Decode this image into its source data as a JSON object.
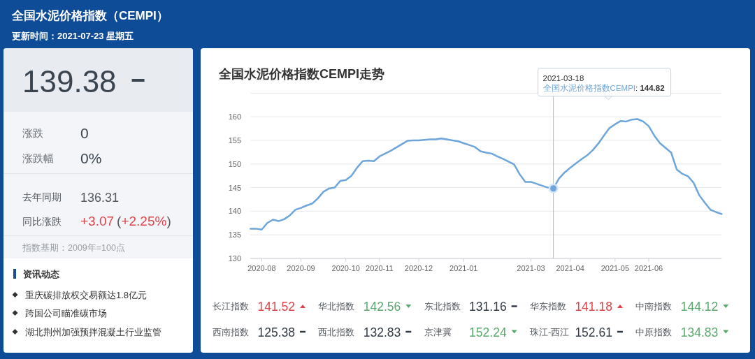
{
  "chart_data": [
    {
      "type": "other",
      "title": "全国水泥价格指数（CEMPI）",
      "subtitle": "更新时间：2021-07-23 星期五",
      "annotations": [
        "139.38",
        "涨跌",
        "0",
        "涨跌幅",
        "0%",
        "去年同期",
        "136.31",
        "同比涨跌",
        "+3.07",
        "(+2.25%)",
        "指数基期：2009年=100点",
        "资讯动态",
        "重庆碳排放权交易额达1.8亿元",
        "跨国公司瞄准碳市场",
        "湖北荆州加强预拌混凝土行业监管"
      ]
    },
    {
      "type": "line",
      "title": "全国水泥价格指数CEMPI走势",
      "categories": [
        null,
        null,
        "2020-08",
        null,
        null,
        null,
        null,
        null,
        null,
        "2020-09",
        null,
        null,
        null,
        null,
        null,
        null,
        null,
        "2020-10",
        null,
        null,
        null,
        null,
        null,
        "2020-11",
        null,
        null,
        null,
        null,
        null,
        null,
        "2020-12",
        null,
        null,
        null,
        null,
        null,
        null,
        null,
        "2021-01",
        null,
        null,
        null,
        null,
        null,
        null,
        null,
        null,
        null,
        null,
        null,
        "2021-03",
        null,
        null,
        null,
        null,
        null,
        null,
        "2021-04",
        null,
        null,
        null,
        null,
        null,
        null,
        null,
        "2021-05",
        null,
        null,
        null,
        null,
        null,
        "2021-06",
        null,
        null,
        null,
        null,
        null,
        null,
        null,
        null,
        null,
        null,
        null,
        null,
        null
      ],
      "series": [
        {
          "type": "line",
          "color": "#6ea6dc",
          "values": [
            136.3,
            136.3,
            136.1,
            137.5,
            138.2,
            137.9,
            138.3,
            139.1,
            140.3,
            140.7,
            141.2,
            141.6,
            142.7,
            144.1,
            144.8,
            145.0,
            146.4,
            146.6,
            147.5,
            149.2,
            150.6,
            150.7,
            150.6,
            151.6,
            152.2,
            152.8,
            153.5,
            154.2,
            154.9,
            155.0,
            155.0,
            155.1,
            155.2,
            155.2,
            155.4,
            155.2,
            155.0,
            154.8,
            154.4,
            154.0,
            153.6,
            152.7,
            152.4,
            152.2,
            151.6,
            151.1,
            150.5,
            149.9,
            147.8,
            146.2,
            146.2,
            145.8,
            145.4,
            145.0,
            144.82,
            146.9,
            148.2,
            149.2,
            150.1,
            151.0,
            151.8,
            152.9,
            154.3,
            156.0,
            157.6,
            158.4,
            159.1,
            159.0,
            159.4,
            159.5,
            159.0,
            158.0,
            156.0,
            154.4,
            153.4,
            152.4,
            148.8,
            147.9,
            147.4,
            146.0,
            143.4,
            141.8,
            140.3,
            139.8,
            139.4
          ]
        },
        {
          "type": "scatter",
          "color": "#6ea6dc",
          "values": [
            null,
            null,
            null,
            null,
            null,
            null,
            null,
            null,
            null,
            null,
            null,
            null,
            null,
            null,
            null,
            null,
            null,
            null,
            null,
            null,
            null,
            null,
            null,
            null,
            null,
            null,
            null,
            null,
            null,
            null,
            null,
            null,
            null,
            null,
            null,
            null,
            null,
            null,
            null,
            null,
            null,
            null,
            null,
            null,
            null,
            null,
            null,
            null,
            null,
            null,
            null,
            null,
            null,
            null,
            144.82,
            null,
            null,
            null,
            null,
            null,
            null,
            null,
            null,
            null,
            null,
            null,
            null,
            null,
            null,
            null,
            null,
            null,
            null,
            null,
            null,
            null,
            null,
            null,
            null,
            null,
            null,
            null,
            null,
            null,
            null
          ]
        }
      ],
      "ylim": [
        130,
        165
      ],
      "yticks": [
        130,
        135,
        140,
        145,
        150,
        155,
        160,
        {
          "value": 165,
          "label": null
        }
      ],
      "grid": "y",
      "annotations": [
        "2021-03-18",
        "全国水泥价格指数CEMPI: 144.82"
      ]
    },
    {
      "type": "other",
      "categories": [
        "长江指数",
        "华北指数",
        "东北指数",
        "华东指数",
        "中南指数",
        "西南指数",
        "西北指数",
        "京津冀",
        "珠江-西江",
        "中原指数"
      ],
      "values": [
        141.52,
        142.56,
        131.16,
        141.18,
        144.12,
        125.38,
        132.83,
        152.24,
        152.61,
        134.83
      ],
      "colors": [
        "#dc464b",
        "#5aaa6e",
        "#333c45",
        "#dc464b",
        "#5aaa6e",
        "#333c45",
        "#333c45",
        "#5aaa6e",
        "#333c45",
        "#5aaa6e"
      ],
      "data_labels": true
    }
  ]
}
